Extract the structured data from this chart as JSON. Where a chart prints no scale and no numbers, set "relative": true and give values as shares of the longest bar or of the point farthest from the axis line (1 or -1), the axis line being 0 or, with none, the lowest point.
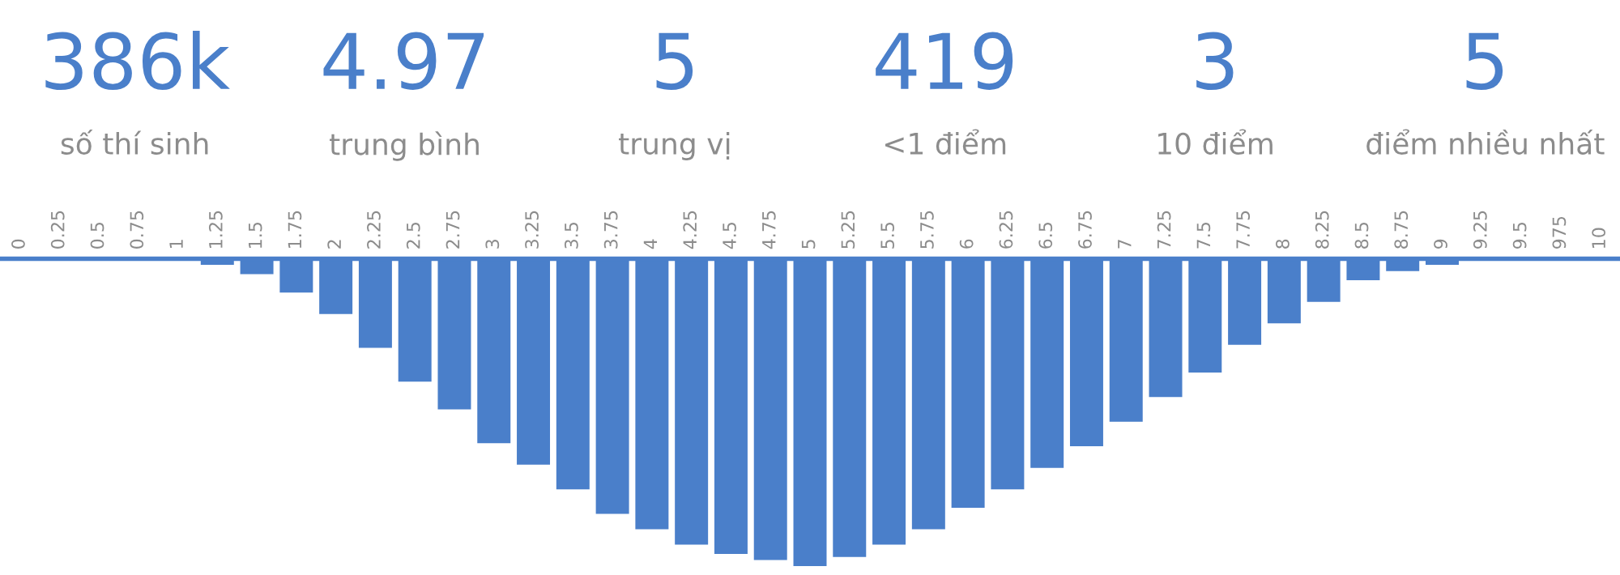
{
  "chart_data": [
    {
      "type": "other",
      "color": "#4a7fca",
      "annotations": [
        "386k",
        "số thí sinh",
        "4.97",
        "trung bình",
        "5",
        "trung vị",
        "419",
        "<1 điểm",
        "3",
        "10 điểm",
        "5",
        "điểm nhiều nhất"
      ]
    },
    {
      "type": "bar",
      "relative": true,
      "color": "#4a7fca",
      "categories": [
        "0",
        "0.25",
        "0.5",
        "0.75",
        "1",
        "1.25",
        "1.5",
        "1.75",
        "2",
        "2.25",
        "2.5",
        "2.75",
        "3",
        "3.25",
        "3.5",
        "3.75",
        "4",
        "4.25",
        "4.5",
        "4.75",
        "5",
        "5.25",
        "5.5",
        "5.75",
        "6",
        "6.25",
        "6.5",
        "6.75",
        "7",
        "7.25",
        "7.5",
        "7.75",
        "8",
        "8.25",
        "8.5",
        "8.75",
        "9",
        "9.25",
        "9.5",
        "975",
        "10"
      ],
      "values": [
        0,
        0,
        0,
        0,
        0,
        -0.02,
        -0.05,
        -0.11,
        -0.18,
        -0.29,
        -0.4,
        -0.49,
        -0.6,
        -0.67,
        -0.75,
        -0.83,
        -0.88,
        -0.93,
        -0.96,
        -0.98,
        -1,
        -0.97,
        -0.93,
        -0.88,
        -0.81,
        -0.75,
        -0.68,
        -0.61,
        -0.53,
        -0.45,
        -0.37,
        -0.28,
        -0.21,
        -0.14,
        -0.07,
        -0.04,
        -0.02,
        0,
        0,
        0,
        0
      ]
    }
  ]
}
